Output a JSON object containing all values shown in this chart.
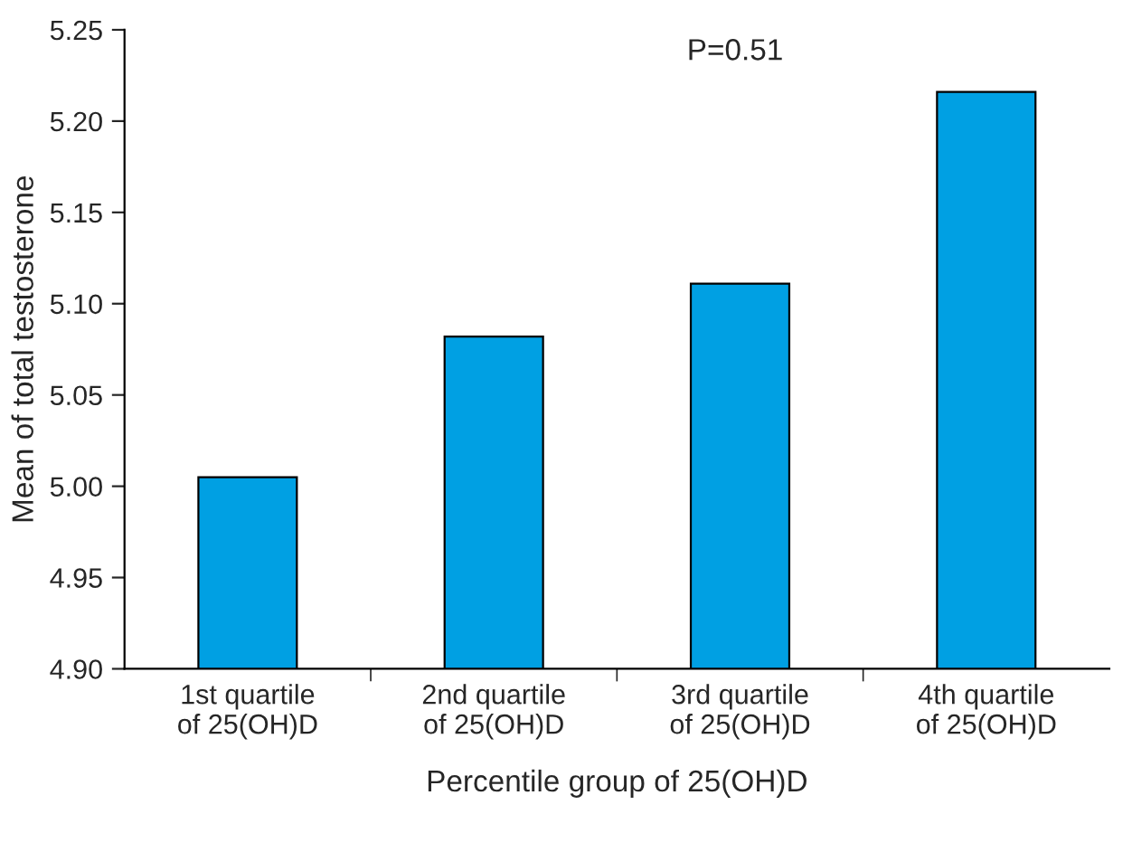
{
  "chart_data": {
    "type": "bar",
    "xlabel": "Percentile group of 25(OH)D",
    "ylabel": "Mean of total testosterone",
    "categories": [
      "1st quartile\nof 25(OH)D",
      "2nd quartile\nof 25(OH)D",
      "3rd quartile\nof 25(OH)D",
      "4th quartile\nof 25(OH)D"
    ],
    "values": [
      5.005,
      5.082,
      5.111,
      5.216
    ],
    "color": "#00a0e3",
    "ylim": [
      4.9,
      5.25
    ],
    "yticks": [
      {
        "value": 4.9,
        "label": "4.90"
      },
      {
        "value": 4.95,
        "label": "4.95"
      },
      {
        "value": 5.0,
        "label": "5.00"
      },
      {
        "value": 5.05,
        "label": "5.05"
      },
      {
        "value": 5.1,
        "label": "5.10"
      },
      {
        "value": 5.15,
        "label": "5.15"
      },
      {
        "value": 5.2,
        "label": "5.20"
      },
      {
        "value": 5.25,
        "label": "5.25"
      }
    ],
    "annotations": [
      "P=0.51"
    ],
    "grid": false
  }
}
